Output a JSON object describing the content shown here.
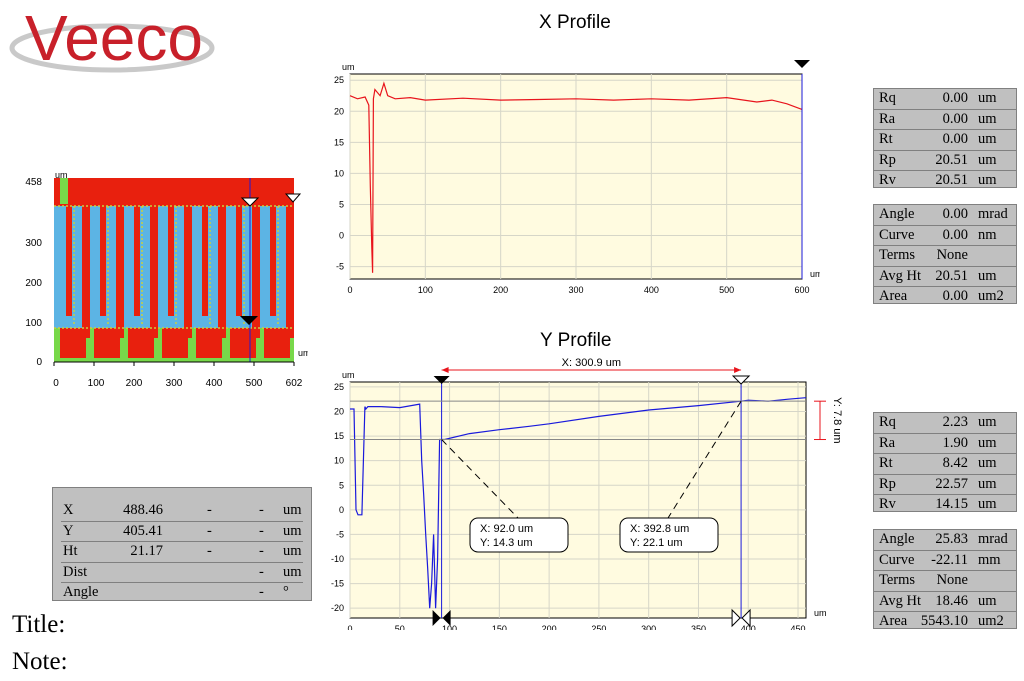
{
  "brand": {
    "logo_text": "Veeco"
  },
  "map": {
    "ytick_labels": [
      "458",
      "300",
      "200",
      "100",
      "0"
    ],
    "xtick_labels": [
      "0",
      "100",
      "200",
      "300",
      "400",
      "500",
      "602"
    ],
    "unit_y": "um",
    "unit_x": "um"
  },
  "chart_data": [
    {
      "type": "line",
      "title": "X Profile",
      "xlabel": "um",
      "ylabel": "um",
      "xlim": [
        0,
        600
      ],
      "ylim": [
        -7,
        26
      ],
      "xticks": [
        0,
        100,
        200,
        300,
        400,
        500,
        600
      ],
      "yticks": [
        -5,
        0,
        5,
        10,
        15,
        20,
        25
      ],
      "grid": true,
      "series": [
        {
          "color": "#e8141c",
          "x": [
            0,
            10,
            20,
            25,
            27,
            29,
            30,
            31,
            33,
            40,
            45,
            50,
            60,
            80,
            100,
            150,
            200,
            250,
            300,
            350,
            400,
            450,
            500,
            540,
            560,
            580,
            600
          ],
          "y": [
            22.5,
            22,
            22.3,
            21,
            8,
            -2,
            -6,
            22,
            23.5,
            22.5,
            24.5,
            22.5,
            22,
            22.2,
            21.8,
            22.1,
            21.8,
            21.9,
            22,
            21.8,
            22,
            21.8,
            22.2,
            21.5,
            21.8,
            21.2,
            20.3
          ]
        }
      ],
      "cursor_x": 600
    },
    {
      "type": "line",
      "title": "Y Profile",
      "xlabel": "um",
      "ylabel": "um",
      "xlim": [
        0,
        458
      ],
      "ylim": [
        -22,
        26
      ],
      "xticks": [
        0,
        50,
        100,
        150,
        200,
        250,
        300,
        350,
        400,
        450
      ],
      "yticks": [
        -20,
        -15,
        -10,
        -5,
        0,
        5,
        10,
        15,
        20,
        25
      ],
      "grid": true,
      "series": [
        {
          "color": "#1a1adc",
          "x": [
            0,
            4,
            6,
            8,
            10,
            12,
            15,
            16,
            18,
            20,
            30,
            50,
            70,
            72,
            74,
            76,
            78,
            80,
            82,
            84,
            86,
            88,
            90,
            92,
            95,
            120,
            150,
            180,
            200,
            250,
            300,
            350,
            392.8,
            400,
            420,
            440,
            458
          ],
          "y": [
            20.5,
            20.5,
            0,
            -1,
            -1,
            -1,
            21,
            20.5,
            21,
            21,
            21,
            20.8,
            21.5,
            10,
            3,
            -5,
            -12,
            -20,
            -15,
            -5,
            -20,
            -10,
            14.3,
            14.3,
            14.3,
            15.5,
            16.3,
            17,
            17.5,
            19,
            20.3,
            21.2,
            22.1,
            22.3,
            22.1,
            22.5,
            22.8
          ]
        }
      ],
      "cursors": [
        {
          "x": 92.0,
          "y": 14.3,
          "label_x": "X: 92.0 um",
          "label_y": "Y: 14.3 um"
        },
        {
          "x": 392.8,
          "y": 22.1,
          "label_x": "X: 392.8 um",
          "label_y": "Y: 22.1 um"
        }
      ],
      "dimension_x": "X: 300.9 um",
      "dimension_y": "Y: 7.8 um"
    }
  ],
  "x_stats": [
    {
      "label": "Rq",
      "value": "0.00",
      "unit": "um"
    },
    {
      "label": "Ra",
      "value": "0.00",
      "unit": "um"
    },
    {
      "label": "Rt",
      "value": "0.00",
      "unit": "um"
    },
    {
      "label": "Rp",
      "value": "20.51",
      "unit": "um"
    },
    {
      "label": "Rv",
      "value": "20.51",
      "unit": "um"
    }
  ],
  "x_fit": [
    {
      "label": "Angle",
      "value": "0.00",
      "unit": "mrad"
    },
    {
      "label": "Curve",
      "value": "0.00",
      "unit": "nm"
    },
    {
      "label": "Terms",
      "value": "None",
      "unit": ""
    },
    {
      "label": "Avg Ht",
      "value": "20.51",
      "unit": "um"
    },
    {
      "label": "Area",
      "value": "0.00",
      "unit": "um2"
    }
  ],
  "y_stats": [
    {
      "label": "Rq",
      "value": "2.23",
      "unit": "um"
    },
    {
      "label": "Ra",
      "value": "1.90",
      "unit": "um"
    },
    {
      "label": "Rt",
      "value": "8.42",
      "unit": "um"
    },
    {
      "label": "Rp",
      "value": "22.57",
      "unit": "um"
    },
    {
      "label": "Rv",
      "value": "14.15",
      "unit": "um"
    }
  ],
  "y_fit": [
    {
      "label": "Angle",
      "value": "25.83",
      "unit": "mrad"
    },
    {
      "label": "Curve",
      "value": "-22.11",
      "unit": "mm"
    },
    {
      "label": "Terms",
      "value": "None",
      "unit": ""
    },
    {
      "label": "Avg Ht",
      "value": "18.46",
      "unit": "um"
    },
    {
      "label": "Area",
      "value": "5543.10",
      "unit": "um2"
    }
  ],
  "cursor_table": [
    {
      "label": "X",
      "v1": "488.46",
      "v2": "-",
      "v3": "-",
      "unit": "um"
    },
    {
      "label": "Y",
      "v1": "405.41",
      "v2": "-",
      "v3": "-",
      "unit": "um"
    },
    {
      "label": "Ht",
      "v1": "21.17",
      "v2": "-",
      "v3": "-",
      "unit": "um"
    },
    {
      "label": "Dist",
      "v1": "",
      "v2": "",
      "v3": "-",
      "unit": "um"
    },
    {
      "label": "Angle",
      "v1": "",
      "v2": "",
      "v3": "-",
      "unit": "°"
    }
  ],
  "footer": {
    "title_label": "Title:",
    "note_label": "Note:"
  },
  "colors": {
    "x_trace": "#e8141c",
    "y_trace": "#1a1adc",
    "plot_bg": "#fffbe0",
    "panel_bg": "#c0c0c0",
    "logo": "#c8202a"
  }
}
